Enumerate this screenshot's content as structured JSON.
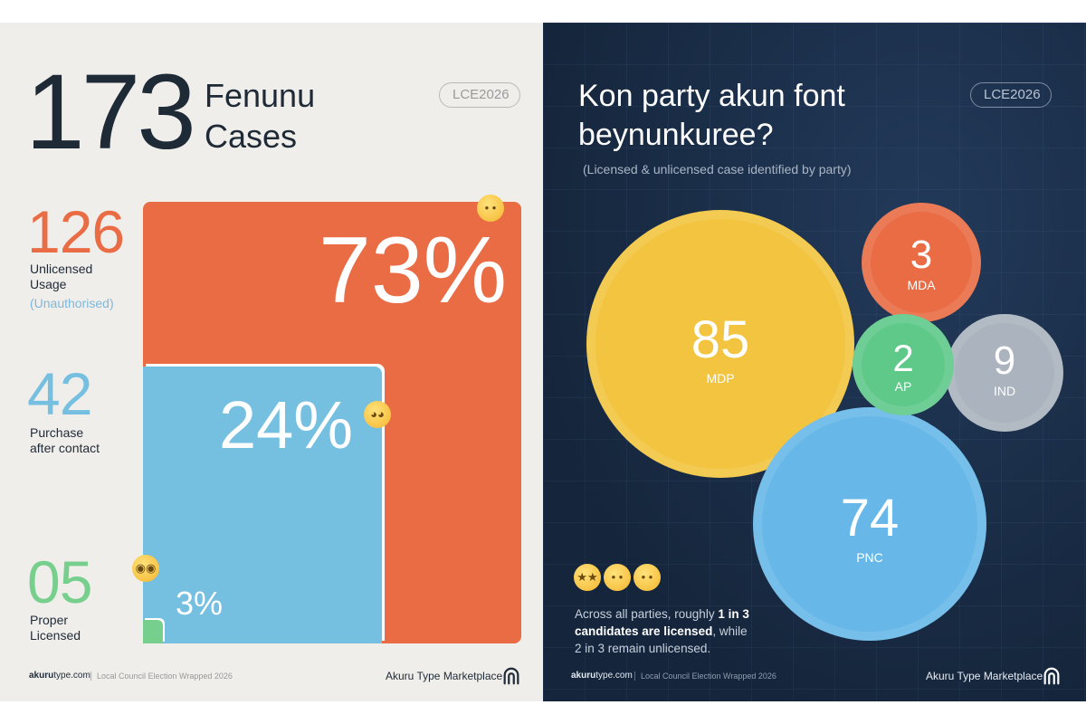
{
  "left": {
    "total": "173",
    "total_label": "Fenunu Cases",
    "badge": "LCE2026",
    "stats": [
      {
        "value": "126",
        "label": "Unlicensed Usage",
        "sublabel": "(Unauthorised)",
        "color": "#e96c45"
      },
      {
        "value": "42",
        "label": "Purchase after contact",
        "color": "#75bfe1"
      },
      {
        "value": "05",
        "label": "Proper Licensed",
        "color": "#77cf8e"
      }
    ],
    "footer": {
      "url_bold": "akuru",
      "url_rest": "type.com",
      "tagline": "Local Council Election Wrapped 2026",
      "brand": "Akuru Type Marketplace"
    }
  },
  "right": {
    "title": "Kon party akun font beynunkuree?",
    "badge": "LCE2026",
    "subtitle": "(Licensed & unlicensed case identified by party)",
    "note": {
      "pre": "Across all parties, roughly ",
      "bold": "1 in 3 candidates are licensed",
      "post": ", while 2 in 3 remain unlicensed."
    },
    "footer": {
      "url_bold": "akuru",
      "url_rest": "type.com",
      "tagline": "Local Council Election Wrapped 2026",
      "brand": "Akuru Type Marketplace"
    }
  },
  "chart_data": [
    {
      "type": "area",
      "title": "",
      "categories": [
        "Unlicensed Usage",
        "Purchase after contact",
        "Proper Licensed"
      ],
      "values": [
        126,
        42,
        5
      ],
      "percent_labels": [
        "73%",
        "24%",
        "3%"
      ],
      "colors": [
        "#e96c45",
        "#75bfe1",
        "#77cf8e"
      ]
    },
    {
      "type": "scatter",
      "title": "Kon party akun font beynunkuree?",
      "categories": [
        "MDP",
        "PNC",
        "IND",
        "MDA",
        "AP"
      ],
      "values": [
        85,
        74,
        9,
        3,
        2
      ],
      "colors": [
        "#f2c43f",
        "#67b8e8",
        "#aab3be",
        "#e96c45",
        "#5fc98a"
      ]
    }
  ]
}
